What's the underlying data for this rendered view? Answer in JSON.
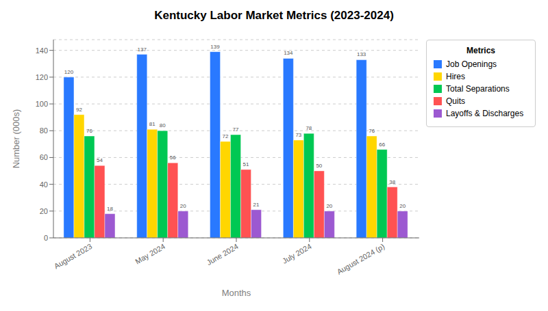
{
  "chart_data": {
    "type": "bar",
    "title": "Kentucky Labor Market Metrics (2023-2024)",
    "xlabel": "Months",
    "ylabel": "Number (000s)",
    "legend_title": "Metrics",
    "categories": [
      "August 2023",
      "May 2024",
      "June 2024",
      "July 2024",
      "August 2024 (p)"
    ],
    "series": [
      {
        "name": "Job Openings",
        "color": "#2979FF",
        "values": [
          120,
          137,
          139,
          134,
          133
        ]
      },
      {
        "name": "Hires",
        "color": "#FFD600",
        "values": [
          92,
          81,
          72,
          73,
          76
        ]
      },
      {
        "name": "Total Separations",
        "color": "#00C853",
        "values": [
          76,
          80,
          77,
          78,
          66
        ]
      },
      {
        "name": "Quits",
        "color": "#FF5252",
        "values": [
          54,
          56,
          51,
          50,
          38
        ]
      },
      {
        "name": "Layoffs & Discharges",
        "color": "#9C59D1",
        "values": [
          18,
          20,
          21,
          20,
          20
        ]
      }
    ],
    "ylim": [
      0,
      148
    ],
    "yticks": [
      0,
      20,
      40,
      60,
      80,
      100,
      120,
      140
    ],
    "grid": true,
    "legend": "upper right",
    "data_labels": true
  }
}
